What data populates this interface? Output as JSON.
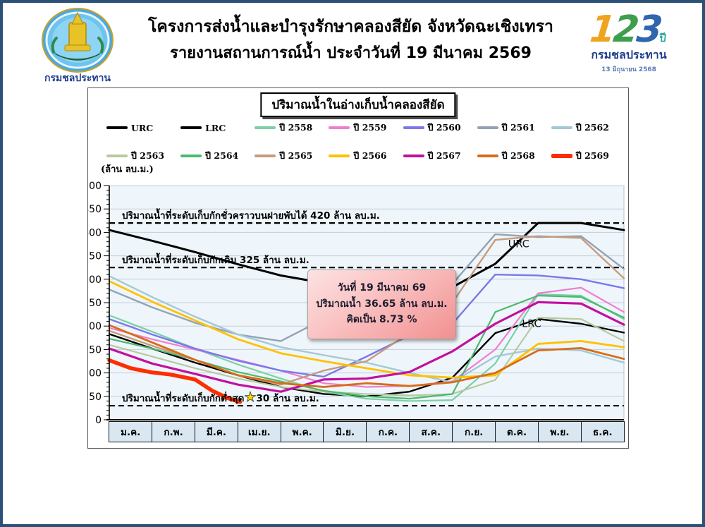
{
  "header": {
    "title_line1": "โครงการส่งน้ำและบำรุงรักษาคลองสียัด จังหวัดฉะเชิงเทรา",
    "title_line2": "รายงานสถานการณ์น้ำ ประจำวันที่ 19 มีนาคม 2569"
  },
  "left_logo": {
    "caption": "กรมชลประทาน"
  },
  "right_logo": {
    "digit1": "1",
    "digit2": "2",
    "digit3": "3",
    "digit_colors": [
      "#f0a41e",
      "#3f9e4d",
      "#2f66ae"
    ],
    "year_suffix": "ปี",
    "org_name": "กรมชลประทาน",
    "anniversary_date": "13 มิถุนายน 2568"
  },
  "chart_data": {
    "type": "line",
    "title": "ปริมาณน้ำในอ่างเก็บน้ำคลองสียัด",
    "unit_label": "(ล้าน ลบ.ม.)",
    "ylim": [
      0,
      500
    ],
    "ytick_step": 50,
    "y_minor_step": 10,
    "grid": "horizontal",
    "categories_months": [
      "ม.ค.",
      "ก.พ.",
      "มี.ค.",
      "เม.ย.",
      "พ.ค.",
      "มิ.ย.",
      "ก.ค.",
      "ส.ค.",
      "ก.ย.",
      "ต.ค.",
      "พ.ย.",
      "ธ.ค."
    ],
    "reference_lines": [
      {
        "label": "ปริมาณน้ำที่ระดับเก็บกักชั่วคราวบนฝายพับได้ 420 ล้าน ลบ.ม.",
        "value": 420,
        "star": false
      },
      {
        "label": "ปริมาณน้ำที่ระดับเก็บกักเดิม 325 ล้าน ลบ.ม.",
        "value": 325,
        "star": false
      },
      {
        "label": "ปริมาณน้ำที่ระดับเก็บกักต่ำสุด",
        "label2": "30 ล้าน ลบ.ม.",
        "value": 30,
        "star": true,
        "star_symbol": "★"
      }
    ],
    "annotation": {
      "line1": "วันที่ 19 มีนาคม 69",
      "line2": "ปริมาณน้ำ 36.65 ล้าน ลบ.ม.",
      "line3": "คิดเป็น 8.73 %"
    },
    "curve_labels": [
      {
        "text": "URC",
        "month": 9.3,
        "value": 368
      },
      {
        "text": "LRC",
        "month": 9.62,
        "value": 198
      }
    ],
    "series": [
      {
        "name": "URC",
        "color": "#000000",
        "width": 3.0,
        "values": [
          405,
          382,
          358,
          332,
          308,
          292,
          283,
          280,
          283,
          333,
          420,
          420,
          405
        ]
      },
      {
        "name": "LRC",
        "color": "#000000",
        "width": 2.4,
        "values": [
          183,
          152,
          122,
          95,
          70,
          55,
          50,
          60,
          90,
          185,
          215,
          205,
          186
        ]
      },
      {
        "name": "ปี 2558",
        "color": "#7bd0a5",
        "width": 2.2,
        "values": [
          223,
          188,
          152,
          118,
          88,
          60,
          45,
          40,
          42,
          120,
          268,
          265,
          215
        ]
      },
      {
        "name": "ปี 2559",
        "color": "#ee7fd0",
        "width": 2.2,
        "values": [
          196,
          172,
          150,
          128,
          105,
          78,
          70,
          72,
          82,
          150,
          270,
          282,
          230
        ]
      },
      {
        "name": "ปี 2560",
        "color": "#7a78ea",
        "width": 2.4,
        "values": [
          215,
          182,
          152,
          126,
          105,
          92,
          135,
          180,
          205,
          310,
          308,
          300,
          281
        ]
      },
      {
        "name": "ปี 2561",
        "color": "#93a2b4",
        "width": 2.4,
        "values": [
          278,
          240,
          207,
          182,
          168,
          215,
          228,
          238,
          290,
          396,
          390,
          392,
          322
        ]
      },
      {
        "name": "ปี 2562",
        "color": "#a3c8d6",
        "width": 2.4,
        "values": [
          307,
          262,
          220,
          182,
          155,
          138,
          122,
          100,
          80,
          135,
          152,
          148,
          122
        ]
      },
      {
        "name": "ปี 2563",
        "color": "#b8c9a0",
        "width": 2.2,
        "values": [
          160,
          135,
          110,
          88,
          70,
          60,
          55,
          52,
          55,
          85,
          218,
          215,
          168
        ]
      },
      {
        "name": "ปี 2564",
        "color": "#4cb96e",
        "width": 2.2,
        "values": [
          173,
          152,
          128,
          102,
          82,
          62,
          50,
          45,
          55,
          230,
          265,
          262,
          218
        ]
      },
      {
        "name": "ปี 2565",
        "color": "#c69c7c",
        "width": 2.4,
        "values": [
          190,
          158,
          128,
          95,
          75,
          105,
          125,
          185,
          250,
          384,
          392,
          388,
          302
        ]
      },
      {
        "name": "ปี 2566",
        "color": "#fec100",
        "width": 2.8,
        "values": [
          296,
          252,
          212,
          172,
          142,
          125,
          110,
          95,
          90,
          95,
          162,
          168,
          155
        ]
      },
      {
        "name": "ปี 2567",
        "color": "#c2109e",
        "width": 3.2,
        "values": [
          152,
          120,
          98,
          75,
          60,
          86,
          88,
          102,
          146,
          205,
          251,
          248,
          203
        ]
      },
      {
        "name": "ปี 2568",
        "color": "#d96c16",
        "width": 2.8,
        "values": [
          202,
          165,
          128,
          95,
          78,
          70,
          78,
          72,
          80,
          100,
          148,
          153,
          130
        ]
      },
      {
        "name": "ปี 2569",
        "color": "#fe2e00",
        "width": 5.5,
        "months": [
          0,
          0.5,
          1,
          1.4,
          2,
          2.4,
          2.8,
          3.05
        ],
        "values": [
          127,
          110,
          101,
          97,
          86,
          62,
          45,
          38
        ]
      }
    ]
  }
}
